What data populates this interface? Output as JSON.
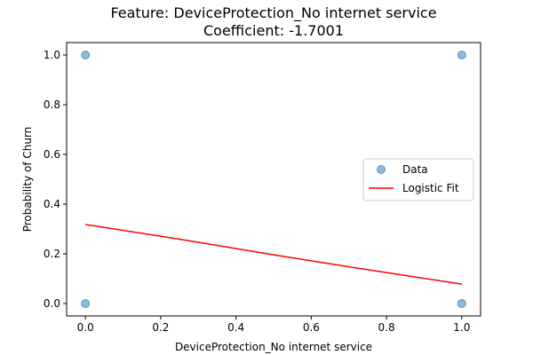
{
  "chart_data": {
    "type": "scatter",
    "title": "Feature: DeviceProtection_No internet service",
    "subtitle": "Coefficient: -1.7001",
    "xlabel": "DeviceProtection_No internet service",
    "ylabel": "Probability of Churn",
    "xlim": [
      -0.05,
      1.05
    ],
    "ylim": [
      -0.05,
      1.05
    ],
    "xticks": [
      0.0,
      0.2,
      0.4,
      0.6,
      0.8,
      1.0
    ],
    "yticks": [
      0.0,
      0.2,
      0.4,
      0.6,
      0.8,
      1.0
    ],
    "xtick_labels": [
      "0.0",
      "0.2",
      "0.4",
      "0.6",
      "0.8",
      "1.0"
    ],
    "ytick_labels": [
      "0.0",
      "0.2",
      "0.4",
      "0.6",
      "0.8",
      "1.0"
    ],
    "grid": false,
    "legend_position": "center-right",
    "series": [
      {
        "name": "Data",
        "kind": "scatter",
        "color": "#1f77b4",
        "points": [
          [
            0,
            0
          ],
          [
            0,
            1
          ],
          [
            1,
            0
          ],
          [
            1,
            1
          ]
        ]
      },
      {
        "name": "Logistic Fit",
        "kind": "line",
        "color": "#ff0000",
        "x": [
          0.0,
          0.25,
          0.5,
          0.75,
          1.0
        ],
        "y": [
          0.318,
          0.259,
          0.196,
          0.136,
          0.078
        ]
      }
    ]
  }
}
